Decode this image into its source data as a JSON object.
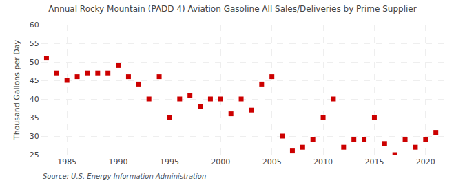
{
  "chart_data": {
    "type": "scatter",
    "title": "Annual Rocky Mountain (PADD 4) Aviation Gasoline All Sales/Deliveries by Prime Supplier",
    "ylabel": "Thousand Gallons per Day",
    "annotations": [
      "Source: U.S. Energy Information Administration"
    ],
    "x": [
      1983,
      1984,
      1985,
      1986,
      1987,
      1988,
      1989,
      1990,
      1991,
      1992,
      1993,
      1994,
      1995,
      1996,
      1997,
      1998,
      1999,
      2000,
      2001,
      2002,
      2003,
      2004,
      2005,
      2006,
      2007,
      2008,
      2009,
      2010,
      2011,
      2012,
      2013,
      2014,
      2015,
      2016,
      2017,
      2018,
      2019,
      2020,
      2021
    ],
    "values": [
      51,
      47,
      45,
      46,
      47,
      47,
      47,
      49,
      46,
      44,
      40,
      46,
      35,
      40,
      41,
      38,
      40,
      40,
      36,
      40,
      37,
      44,
      46,
      30,
      26,
      27,
      29,
      35,
      40,
      27,
      29,
      29,
      35,
      28,
      25,
      29,
      27,
      29,
      31
    ],
    "color": "#CC0000",
    "marker": "square",
    "xlim": [
      1982.5,
      2022.5
    ],
    "xticks": [
      1985,
      1990,
      1995,
      2000,
      2005,
      2010,
      2015,
      2020
    ],
    "ylim": [
      25,
      60
    ],
    "yticks": [
      25,
      30,
      35,
      40,
      45,
      50,
      55,
      60
    ],
    "grid": true
  }
}
